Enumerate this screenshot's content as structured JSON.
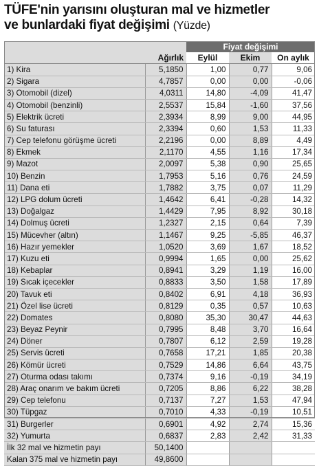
{
  "title_line1": "TÜFE'nin yarısını oluşturan mal ve hizmetler",
  "title_line2": "ve bunlardaki fiyat değişimi",
  "title_unit": "(Yüzde)",
  "group_header": "Fiyat değişimi",
  "columns": [
    "Ağırlık",
    "Eylül",
    "Ekim",
    "On aylık"
  ],
  "rows": [
    {
      "label": "1) Kira",
      "w": "5,1850",
      "e": "1,00",
      "k": "0,77",
      "o": "9,06"
    },
    {
      "label": "2) Sigara",
      "w": "4,7857",
      "e": "0,00",
      "k": "0,00",
      "o": "-0,06"
    },
    {
      "label": "3) Otomobil (dizel)",
      "w": "4,0311",
      "e": "14,80",
      "k": "-4,09",
      "o": "41,47"
    },
    {
      "label": "4) Otomobil (benzinli)",
      "w": "2,5537",
      "e": "15,84",
      "k": "-1,60",
      "o": "37,56"
    },
    {
      "label": "5) Elektrik ücreti",
      "w": "2,3934",
      "e": "8,99",
      "k": "9,00",
      "o": "44,95"
    },
    {
      "label": "6) Su faturası",
      "w": "2,3394",
      "e": "0,60",
      "k": "1,53",
      "o": "11,33"
    },
    {
      "label": "7) Cep telefonu görüşme ücreti",
      "w": "2,2196",
      "e": "0,00",
      "k": "8,89",
      "o": "4,49"
    },
    {
      "label": "8) Ekmek",
      "w": "2,1170",
      "e": "4,55",
      "k": "1,16",
      "o": "17,34"
    },
    {
      "label": "9) Mazot",
      "w": "2,0097",
      "e": "5,38",
      "k": "0,90",
      "o": "25,65"
    },
    {
      "label": "10) Benzin",
      "w": "1,7953",
      "e": "5,16",
      "k": "0,76",
      "o": "24,59"
    },
    {
      "label": "11) Dana eti",
      "w": "1,7882",
      "e": "3,75",
      "k": "0,07",
      "o": "11,29"
    },
    {
      "label": "12) LPG dolum ücreti",
      "w": "1,4642",
      "e": "6,41",
      "k": "-0,28",
      "o": "14,32"
    },
    {
      "label": "13) Doğalgaz",
      "w": "1,4429",
      "e": "7,95",
      "k": "8,92",
      "o": "30,18"
    },
    {
      "label": "14) Dolmuş ücreti",
      "w": "1,2327",
      "e": "2,15",
      "k": "0,64",
      "o": "7,39"
    },
    {
      "label": "15) Mücevher (altın)",
      "w": "1,1467",
      "e": "9,25",
      "k": "-5,85",
      "o": "46,37"
    },
    {
      "label": "16) Hazır yemekler",
      "w": "1,0520",
      "e": "3,69",
      "k": "1,67",
      "o": "18,52"
    },
    {
      "label": "17) Kuzu eti",
      "w": "0,9994",
      "e": "1,65",
      "k": "0,00",
      "o": "25,62"
    },
    {
      "label": "18) Kebaplar",
      "w": "0,8941",
      "e": "3,29",
      "k": "1,19",
      "o": "16,00"
    },
    {
      "label": "19) Sıcak içecekler",
      "w": "0,8833",
      "e": "3,50",
      "k": "1,58",
      "o": "17,89"
    },
    {
      "label": "20) Tavuk eti",
      "w": "0,8402",
      "e": "6,91",
      "k": "4,18",
      "o": "36,93"
    },
    {
      "label": "21) Özel lise ücreti",
      "w": "0,8129",
      "e": "0,35",
      "k": "0,57",
      "o": "10,63"
    },
    {
      "label": "22) Domates",
      "w": "0,8080",
      "e": "35,30",
      "k": "30,47",
      "o": "44,63"
    },
    {
      "label": "23) Beyaz Peynir",
      "w": "0,7995",
      "e": "8,48",
      "k": "3,70",
      "o": "16,64"
    },
    {
      "label": "24) Döner",
      "w": "0,7807",
      "e": "6,12",
      "k": "2,59",
      "o": "19,28"
    },
    {
      "label": "25) Servis ücreti",
      "w": "0,7658",
      "e": "17,21",
      "k": "1,85",
      "o": "20,38"
    },
    {
      "label": "26) Kömür ücreti",
      "w": "0,7529",
      "e": "14,86",
      "k": "6,64",
      "o": "43,75"
    },
    {
      "label": "27) Oturma odası takımı",
      "w": "0,7374",
      "e": "9,16",
      "k": "-0,19",
      "o": "34,19"
    },
    {
      "label": "28) Araç onarım ve bakım ücreti",
      "w": "0,7205",
      "e": "8,86",
      "k": "6,22",
      "o": "38,28"
    },
    {
      "label": "29) Cep telefonu",
      "w": "0,7137",
      "e": "7,27",
      "k": "1,53",
      "o": "47,94"
    },
    {
      "label": "30) Tüpgaz",
      "w": "0,7010",
      "e": "4,33",
      "k": "-0,19",
      "o": "10,51"
    },
    {
      "label": "31) Burgerler",
      "w": "0,6901",
      "e": "4,92",
      "k": "2,74",
      "o": "15,36"
    },
    {
      "label": "32) Yumurta",
      "w": "0,6837",
      "e": "2,83",
      "k": "2,42",
      "o": "31,33"
    }
  ],
  "footer": [
    {
      "label": "İlk 32 mal ve hizmetin payı",
      "w": "50,1400"
    },
    {
      "label": "Kalan 375 mal ve hizmetin payı",
      "w": "49,8600"
    }
  ]
}
